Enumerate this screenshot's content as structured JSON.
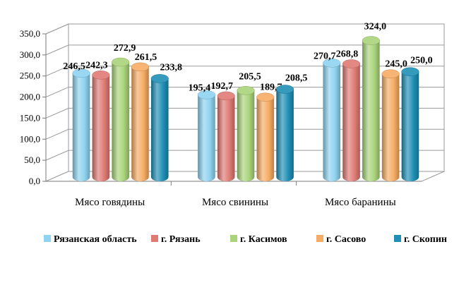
{
  "chart_data": {
    "type": "bar",
    "title": "",
    "xlabel": "",
    "ylabel": "",
    "ylim": [
      0,
      350
    ],
    "y_ticks": [
      "0,0",
      "50,0",
      "100,0",
      "150,0",
      "200,0",
      "250,0",
      "300,0",
      "350,0"
    ],
    "grid": true,
    "legend_position": "bottom",
    "categories": [
      "Мясо говядины",
      "Мясо свинины",
      "Мясо баранины"
    ],
    "series": [
      {
        "name": "Рязанская область",
        "color": "#8fd3f0",
        "values": [
          246.5,
          195.4,
          270.7
        ],
        "labels": [
          "246,5",
          "195,4",
          "270,7"
        ]
      },
      {
        "name": "г. Рязань",
        "color": "#e07a74",
        "values": [
          242.3,
          192.7,
          268.8
        ],
        "labels": [
          "242,3",
          "192,7",
          "268,8"
        ]
      },
      {
        "name": "г. Касимов",
        "color": "#a9d47a",
        "values": [
          272.9,
          205.5,
          324.0
        ],
        "labels": [
          "272,9",
          "205,5",
          "324,0"
        ]
      },
      {
        "name": "г. Сасово",
        "color": "#f6ac64",
        "values": [
          261.5,
          189.7,
          245.0
        ],
        "labels": [
          "261,5",
          "189,7",
          "245,0"
        ]
      },
      {
        "name": "г. Скопин",
        "color": "#1f8fb5",
        "values": [
          233.8,
          208.5,
          250.0
        ],
        "labels": [
          "233,8",
          "208,5",
          "250,0"
        ]
      }
    ]
  }
}
